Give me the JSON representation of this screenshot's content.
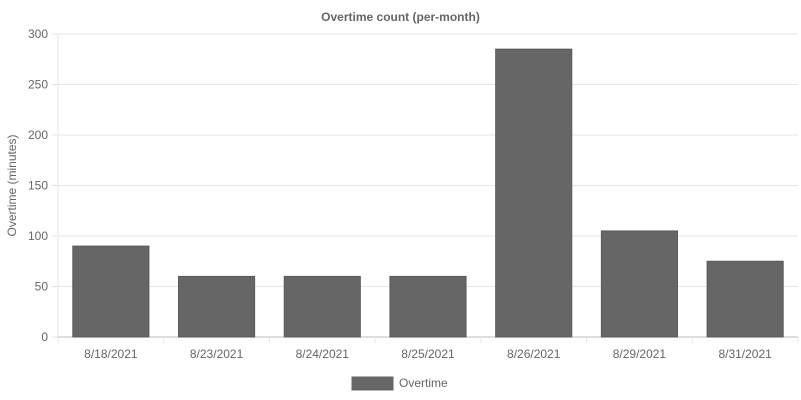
{
  "chart_data": {
    "type": "bar",
    "title": "Overtime count (per-month)",
    "xlabel": "",
    "ylabel": "Overtime (minutes)",
    "categories": [
      "8/18/2021",
      "8/23/2021",
      "8/24/2021",
      "8/25/2021",
      "8/26/2021",
      "8/29/2021",
      "8/31/2021"
    ],
    "series": [
      {
        "name": "Overtime",
        "values": [
          90,
          60,
          60,
          60,
          285,
          105,
          75
        ],
        "color": "#666666"
      }
    ],
    "ylim": [
      0,
      300
    ],
    "yticks": [
      0,
      50,
      100,
      150,
      200,
      250,
      300
    ],
    "grid": true,
    "legend_position": "bottom"
  }
}
